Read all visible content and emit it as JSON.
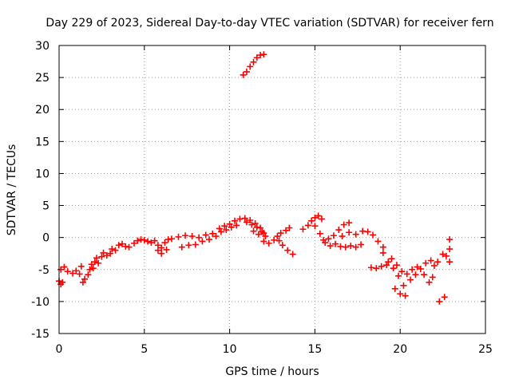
{
  "chart_data": {
    "type": "scatter",
    "title": "Day 229 of 2023, Sidereal Day-to-day VTEC variation (SDTVAR) for receiver fern",
    "xlabel": "GPS time / hours",
    "ylabel": "SDTVAR / TECUs",
    "xlim": [
      0,
      25
    ],
    "ylim": [
      -15,
      30
    ],
    "xticks": [
      "0",
      "5",
      "10",
      "15",
      "20",
      "25"
    ],
    "yticks": [
      "-15",
      "-10",
      "-5",
      "0",
      "5",
      "10",
      "15",
      "20",
      "25",
      "30"
    ],
    "grid": true,
    "marker": "plus",
    "color": "#ff0000",
    "series": [
      {
        "name": "SDTVAR",
        "points": [
          [
            0.0,
            -6.8
          ],
          [
            0.1,
            -7.3
          ],
          [
            0.2,
            -7.0
          ],
          [
            0.1,
            -5.0
          ],
          [
            0.3,
            -4.6
          ],
          [
            0.5,
            -5.3
          ],
          [
            0.8,
            -5.6
          ],
          [
            1.0,
            -5.2
          ],
          [
            1.2,
            -5.7
          ],
          [
            1.3,
            -4.5
          ],
          [
            1.4,
            -7.0
          ],
          [
            1.5,
            -6.5
          ],
          [
            1.7,
            -5.8
          ],
          [
            1.8,
            -5.0
          ],
          [
            1.9,
            -4.2
          ],
          [
            2.0,
            -4.8
          ],
          [
            2.1,
            -3.8
          ],
          [
            2.2,
            -3.2
          ],
          [
            2.3,
            -4.0
          ],
          [
            2.5,
            -3.0
          ],
          [
            2.6,
            -2.4
          ],
          [
            2.8,
            -2.8
          ],
          [
            3.0,
            -2.5
          ],
          [
            3.1,
            -1.8
          ],
          [
            3.3,
            -2.0
          ],
          [
            3.5,
            -1.2
          ],
          [
            3.7,
            -1.0
          ],
          [
            3.9,
            -1.4
          ],
          [
            4.1,
            -1.5
          ],
          [
            4.4,
            -0.9
          ],
          [
            4.6,
            -0.5
          ],
          [
            4.8,
            -0.3
          ],
          [
            5.0,
            -0.4
          ],
          [
            5.2,
            -0.6
          ],
          [
            5.4,
            -0.8
          ],
          [
            5.6,
            -0.5
          ],
          [
            5.8,
            -1.2
          ],
          [
            6.0,
            -1.6
          ],
          [
            6.2,
            -0.8
          ],
          [
            6.4,
            -0.3
          ],
          [
            5.8,
            -2.0
          ],
          [
            6.0,
            -2.5
          ],
          [
            6.3,
            -1.9
          ],
          [
            6.6,
            -0.2
          ],
          [
            7.0,
            0.1
          ],
          [
            7.4,
            0.3
          ],
          [
            7.8,
            0.2
          ],
          [
            8.2,
            0.0
          ],
          [
            8.6,
            0.4
          ],
          [
            9.0,
            0.6
          ],
          [
            7.2,
            -1.5
          ],
          [
            7.6,
            -1.2
          ],
          [
            8.0,
            -1.1
          ],
          [
            8.4,
            -0.6
          ],
          [
            8.8,
            -0.3
          ],
          [
            9.2,
            0.2
          ],
          [
            9.5,
            0.9
          ],
          [
            9.8,
            1.2
          ],
          [
            10.1,
            1.6
          ],
          [
            10.4,
            1.9
          ],
          [
            9.4,
            1.4
          ],
          [
            9.7,
            1.8
          ],
          [
            10.0,
            2.1
          ],
          [
            10.3,
            2.6
          ],
          [
            10.6,
            2.9
          ],
          [
            10.9,
            3.0
          ],
          [
            11.2,
            2.7
          ],
          [
            11.5,
            2.2
          ],
          [
            11.8,
            1.5
          ],
          [
            12.0,
            0.7
          ],
          [
            11.0,
            2.4
          ],
          [
            11.3,
            2.0
          ],
          [
            11.6,
            1.6
          ],
          [
            11.9,
            0.9
          ],
          [
            12.1,
            0.2
          ],
          [
            11.4,
            1.0
          ],
          [
            11.7,
            0.5
          ],
          [
            12.0,
            -0.6
          ],
          [
            12.3,
            -0.9
          ],
          [
            12.6,
            -0.4
          ],
          [
            12.8,
            0.2
          ],
          [
            13.0,
            0.7
          ],
          [
            13.3,
            1.1
          ],
          [
            13.5,
            1.5
          ],
          [
            13.1,
            -1.2
          ],
          [
            13.4,
            -2.0
          ],
          [
            13.7,
            -2.6
          ],
          [
            12.9,
            -0.5
          ],
          [
            14.3,
            1.3
          ],
          [
            14.6,
            1.9
          ],
          [
            14.8,
            2.6
          ],
          [
            15.0,
            3.1
          ],
          [
            15.2,
            3.4
          ],
          [
            15.4,
            2.9
          ],
          [
            15.0,
            1.8
          ],
          [
            15.3,
            0.6
          ],
          [
            15.5,
            -0.4
          ],
          [
            15.8,
            -0.2
          ],
          [
            16.1,
            0.3
          ],
          [
            16.4,
            1.2
          ],
          [
            16.7,
            2.0
          ],
          [
            17.0,
            2.3
          ],
          [
            15.6,
            -0.8
          ],
          [
            15.9,
            -1.3
          ],
          [
            16.2,
            -1.0
          ],
          [
            16.5,
            -1.4
          ],
          [
            16.8,
            -1.5
          ],
          [
            17.1,
            -1.3
          ],
          [
            17.4,
            -1.5
          ],
          [
            17.7,
            -1.1
          ],
          [
            16.6,
            0.2
          ],
          [
            17.0,
            0.8
          ],
          [
            17.4,
            0.5
          ],
          [
            17.8,
            1.0
          ],
          [
            18.1,
            0.9
          ],
          [
            18.4,
            0.4
          ],
          [
            18.7,
            -0.6
          ],
          [
            19.0,
            -1.5
          ],
          [
            18.3,
            -4.7
          ],
          [
            18.6,
            -4.8
          ],
          [
            18.9,
            -4.5
          ],
          [
            19.2,
            -4.3
          ],
          [
            19.0,
            -2.4
          ],
          [
            19.3,
            -3.8
          ],
          [
            19.6,
            -4.8
          ],
          [
            19.9,
            -6.0
          ],
          [
            20.2,
            -7.5
          ],
          [
            19.7,
            -8.0
          ],
          [
            20.0,
            -8.8
          ],
          [
            20.3,
            -9.1
          ],
          [
            19.5,
            -3.3
          ],
          [
            19.8,
            -4.3
          ],
          [
            20.1,
            -5.3
          ],
          [
            20.4,
            -5.7
          ],
          [
            20.7,
            -5.0
          ],
          [
            21.0,
            -4.6
          ],
          [
            20.6,
            -6.6
          ],
          [
            20.9,
            -5.8
          ],
          [
            21.2,
            -4.9
          ],
          [
            21.5,
            -4.0
          ],
          [
            21.8,
            -3.6
          ],
          [
            22.0,
            -4.4
          ],
          [
            21.4,
            -5.8
          ],
          [
            21.7,
            -7.0
          ],
          [
            21.9,
            -6.2
          ],
          [
            22.2,
            -3.8
          ],
          [
            22.5,
            -2.6
          ],
          [
            22.7,
            -2.9
          ],
          [
            22.3,
            -10.0
          ],
          [
            22.6,
            -9.3
          ],
          [
            22.9,
            -0.3
          ],
          [
            22.9,
            -1.8
          ],
          [
            22.9,
            -3.8
          ],
          [
            10.8,
            25.4
          ],
          [
            11.0,
            25.9
          ],
          [
            11.2,
            26.7
          ],
          [
            11.4,
            27.4
          ],
          [
            11.6,
            28.1
          ],
          [
            11.8,
            28.5
          ],
          [
            12.0,
            28.6
          ]
        ]
      }
    ]
  }
}
